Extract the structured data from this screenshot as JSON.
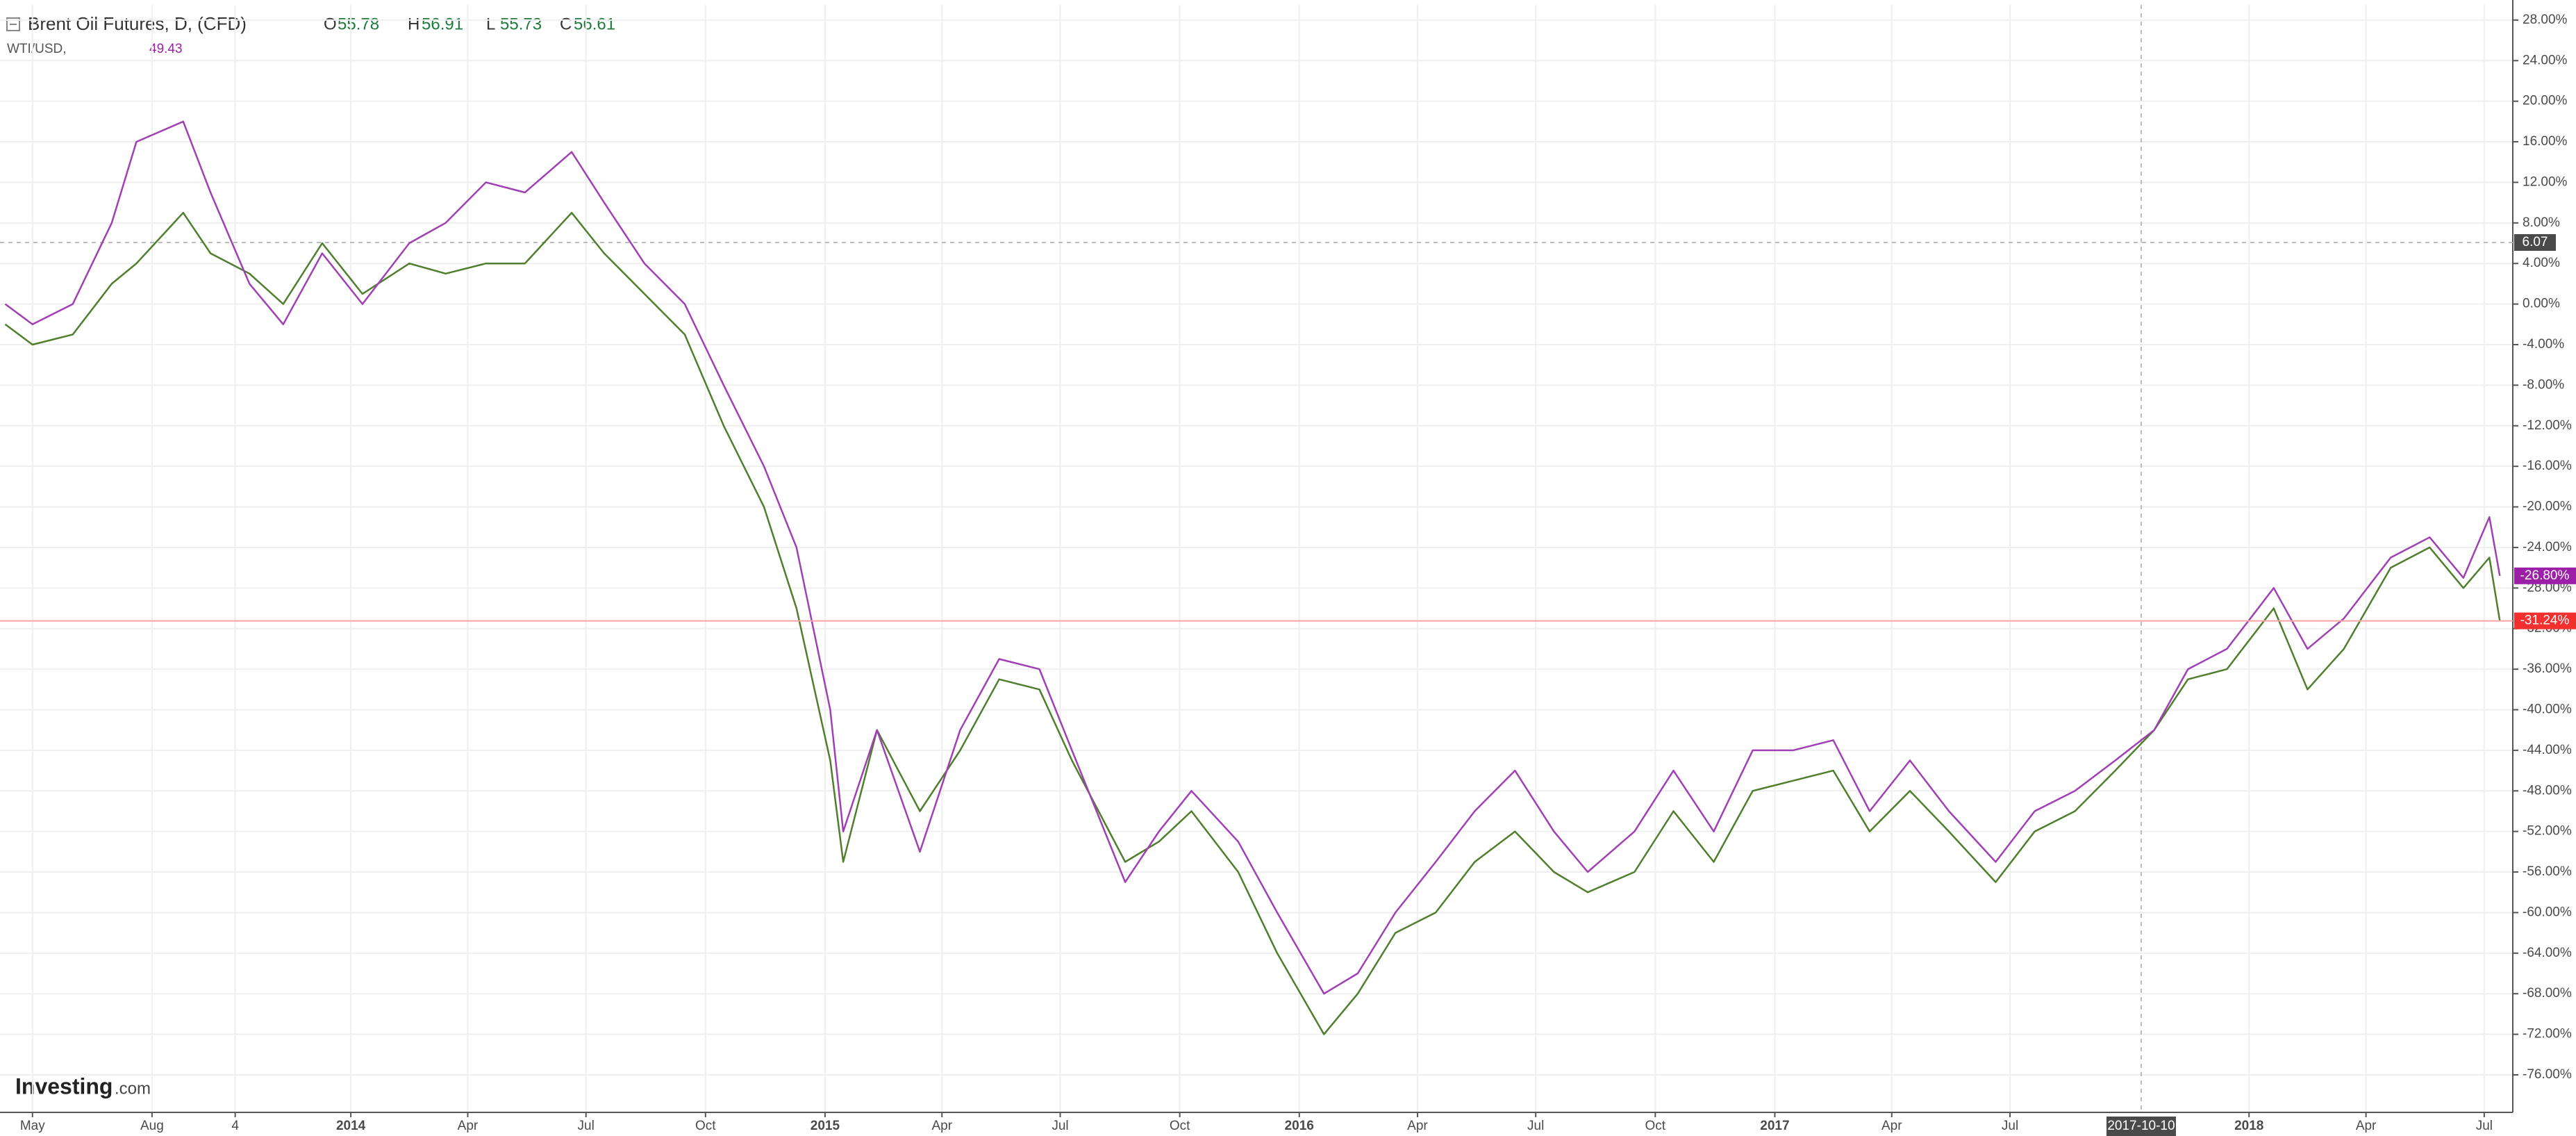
{
  "chart_data": {
    "type": "line",
    "title": "Brent Oil Futures, D, (CFD)",
    "ohlc": [
      {
        "label": "O",
        "value": 55.78
      },
      {
        "label": "H",
        "value": 56.91
      },
      {
        "label": "L",
        "value": 55.73
      },
      {
        "label": "C",
        "value": 56.61
      }
    ],
    "compare": {
      "name": "WTI/USD,",
      "value": 49.43
    },
    "logo": {
      "brand": "Investing",
      "suffix": ".com"
    },
    "crosshair": {
      "y": 6.07,
      "x": "2017-10-10"
    },
    "grid": true,
    "xlim": [
      "2013-04-06",
      "2018-07-23"
    ],
    "xticks": [
      {
        "value": "2013-05-01",
        "label": "May"
      },
      {
        "value": "2013-08-01",
        "label": "Aug"
      },
      {
        "value": "2013-10-04",
        "label": "4"
      },
      {
        "value": "2014-01-01",
        "label": "2014"
      },
      {
        "value": "2014-04-01",
        "label": "Apr"
      },
      {
        "value": "2014-07-01",
        "label": "Jul"
      },
      {
        "value": "2014-10-01",
        "label": "Oct"
      },
      {
        "value": "2015-01-01",
        "label": "2015"
      },
      {
        "value": "2015-04-01",
        "label": "Apr"
      },
      {
        "value": "2015-07-01",
        "label": "Jul"
      },
      {
        "value": "2015-10-01",
        "label": "Oct"
      },
      {
        "value": "2016-01-01",
        "label": "2016"
      },
      {
        "value": "2016-04-01",
        "label": "Apr"
      },
      {
        "value": "2016-07-01",
        "label": "Jul"
      },
      {
        "value": "2016-10-01",
        "label": "Oct"
      },
      {
        "value": "2017-01-01",
        "label": "2017"
      },
      {
        "value": "2017-04-01",
        "label": "Apr"
      },
      {
        "value": "2017-07-01",
        "label": "Jul"
      },
      {
        "value": "2018-01-01",
        "label": "2018"
      },
      {
        "value": "2018-04-01",
        "label": "Apr"
      },
      {
        "value": "2018-07-01",
        "label": "Jul"
      }
    ],
    "ylim": [
      -79.7,
      29.5
    ],
    "yticks": [
      {
        "value": 28,
        "label": "28.00%"
      },
      {
        "value": 24,
        "label": "24.00%"
      },
      {
        "value": 20,
        "label": "20.00%"
      },
      {
        "value": 16,
        "label": "16.00%"
      },
      {
        "value": 12,
        "label": "12.00%"
      },
      {
        "value": 8,
        "label": "8.00%"
      },
      {
        "value": 4,
        "label": "4.00%"
      },
      {
        "value": 0,
        "label": "0.00%"
      },
      {
        "value": -4,
        "label": "-4.00%"
      },
      {
        "value": -8,
        "label": "-8.00%"
      },
      {
        "value": -12,
        "label": "-12.00%"
      },
      {
        "value": -16,
        "label": "-16.00%"
      },
      {
        "value": -20,
        "label": "-20.00%"
      },
      {
        "value": -24,
        "label": "-24.00%"
      },
      {
        "value": -28,
        "label": "-28.00%"
      },
      {
        "value": -32,
        "label": "-32.00%"
      },
      {
        "value": -36,
        "label": "-36.00%"
      },
      {
        "value": -40,
        "label": "-40.00%"
      },
      {
        "value": -44,
        "label": "-44.00%"
      },
      {
        "value": -48,
        "label": "-48.00%"
      },
      {
        "value": -52,
        "label": "-52.00%"
      },
      {
        "value": -56,
        "label": "-56.00%"
      },
      {
        "value": -60,
        "label": "-60.00%"
      },
      {
        "value": -64,
        "label": "-64.00%"
      },
      {
        "value": -68,
        "label": "-68.00%"
      },
      {
        "value": -72,
        "label": "-72.00%"
      },
      {
        "value": -76,
        "label": "-76.00%"
      }
    ],
    "x": [
      "2013-04-10",
      "2013-05-01",
      "2013-06-01",
      "2013-07-01",
      "2013-07-20",
      "2013-08-25",
      "2013-09-15",
      "2013-10-15",
      "2013-11-10",
      "2013-12-10",
      "2014-01-10",
      "2014-02-15",
      "2014-03-15",
      "2014-04-15",
      "2014-05-15",
      "2014-06-20",
      "2014-07-15",
      "2014-08-15",
      "2014-09-15",
      "2014-10-15",
      "2014-11-15",
      "2014-12-10",
      "2015-01-05",
      "2015-01-15",
      "2015-02-10",
      "2015-03-15",
      "2015-04-15",
      "2015-05-15",
      "2015-06-15",
      "2015-07-10",
      "2015-08-20",
      "2015-09-15",
      "2015-10-10",
      "2015-11-15",
      "2015-12-15",
      "2016-01-20",
      "2016-02-15",
      "2016-03-15",
      "2016-04-15",
      "2016-05-15",
      "2016-06-15",
      "2016-07-15",
      "2016-08-10",
      "2016-09-15",
      "2016-10-15",
      "2016-11-15",
      "2016-12-15",
      "2017-01-15",
      "2017-02-15",
      "2017-03-15",
      "2017-04-15",
      "2017-05-15",
      "2017-06-20",
      "2017-07-20",
      "2017-08-20",
      "2017-09-20",
      "2017-10-20",
      "2017-11-15",
      "2017-12-15",
      "2018-01-20",
      "2018-02-15",
      "2018-03-15",
      "2018-04-20",
      "2018-05-20",
      "2018-06-15",
      "2018-07-05",
      "2018-07-13"
    ],
    "series": [
      {
        "name": "Brent Oil Futures",
        "color": "#4f7f2c",
        "values": [
          -2,
          -4,
          -3,
          2,
          4,
          9,
          5,
          3,
          0,
          6,
          1,
          4,
          3,
          4,
          4,
          9,
          5,
          1,
          -3,
          -12,
          -20,
          -30,
          -45,
          -55,
          -42,
          -50,
          -44,
          -37,
          -38,
          -45,
          -55,
          -53,
          -50,
          -56,
          -64,
          -72,
          -68,
          -62,
          -60,
          -55,
          -52,
          -56,
          -58,
          -56,
          -50,
          -55,
          -48,
          -47,
          -46,
          -52,
          -48,
          -52,
          -57,
          -52,
          -50,
          -46,
          -42,
          -37,
          -36,
          -30,
          -38,
          -34,
          -26,
          -24,
          -28,
          -25,
          -31.24
        ],
        "value_labels": [
          null,
          null,
          null,
          null,
          null,
          null,
          null,
          null,
          null,
          null,
          null,
          null,
          null,
          null,
          null,
          null,
          null,
          null,
          null,
          null,
          null,
          null,
          null,
          null,
          null,
          null,
          null,
          null,
          null,
          null,
          null,
          null,
          null,
          null,
          null,
          null,
          null,
          null,
          null,
          null,
          null,
          null,
          null,
          null,
          null,
          null,
          null,
          null,
          null,
          null,
          null,
          null,
          null,
          null,
          null,
          null,
          null,
          null,
          null,
          null,
          null,
          null,
          null,
          null,
          null,
          null,
          "-31.24%"
        ],
        "label_color": "#f23030"
      },
      {
        "name": "WTI/USD",
        "color": "#a040b4",
        "values": [
          0,
          -2,
          0,
          8,
          16,
          18,
          11,
          2,
          -2,
          5,
          0,
          6,
          8,
          12,
          11,
          15,
          10,
          4,
          0,
          -8,
          -16,
          -24,
          -40,
          -52,
          -42,
          -54,
          -42,
          -35,
          -36,
          -44,
          -57,
          -52,
          -48,
          -53,
          -60,
          -68,
          -66,
          -60,
          -55,
          -50,
          -46,
          -52,
          -56,
          -52,
          -46,
          -52,
          -44,
          -44,
          -43,
          -50,
          -45,
          -50,
          -55,
          -50,
          -48,
          -45,
          -42,
          -36,
          -34,
          -28,
          -34,
          -31,
          -25,
          -23,
          -27,
          -21,
          -26.8
        ],
        "value_labels": [
          null,
          null,
          null,
          null,
          null,
          null,
          null,
          null,
          null,
          null,
          null,
          null,
          null,
          null,
          null,
          null,
          null,
          null,
          null,
          null,
          null,
          null,
          null,
          null,
          null,
          null,
          null,
          null,
          null,
          null,
          null,
          null,
          null,
          null,
          null,
          null,
          null,
          null,
          null,
          null,
          null,
          null,
          null,
          null,
          null,
          null,
          null,
          null,
          null,
          null,
          null,
          null,
          null,
          null,
          null,
          null,
          null,
          null,
          null,
          null,
          null,
          null,
          null,
          null,
          null,
          null,
          "-26.80%"
        ],
        "label_color": "#9c1fa8"
      }
    ]
  }
}
